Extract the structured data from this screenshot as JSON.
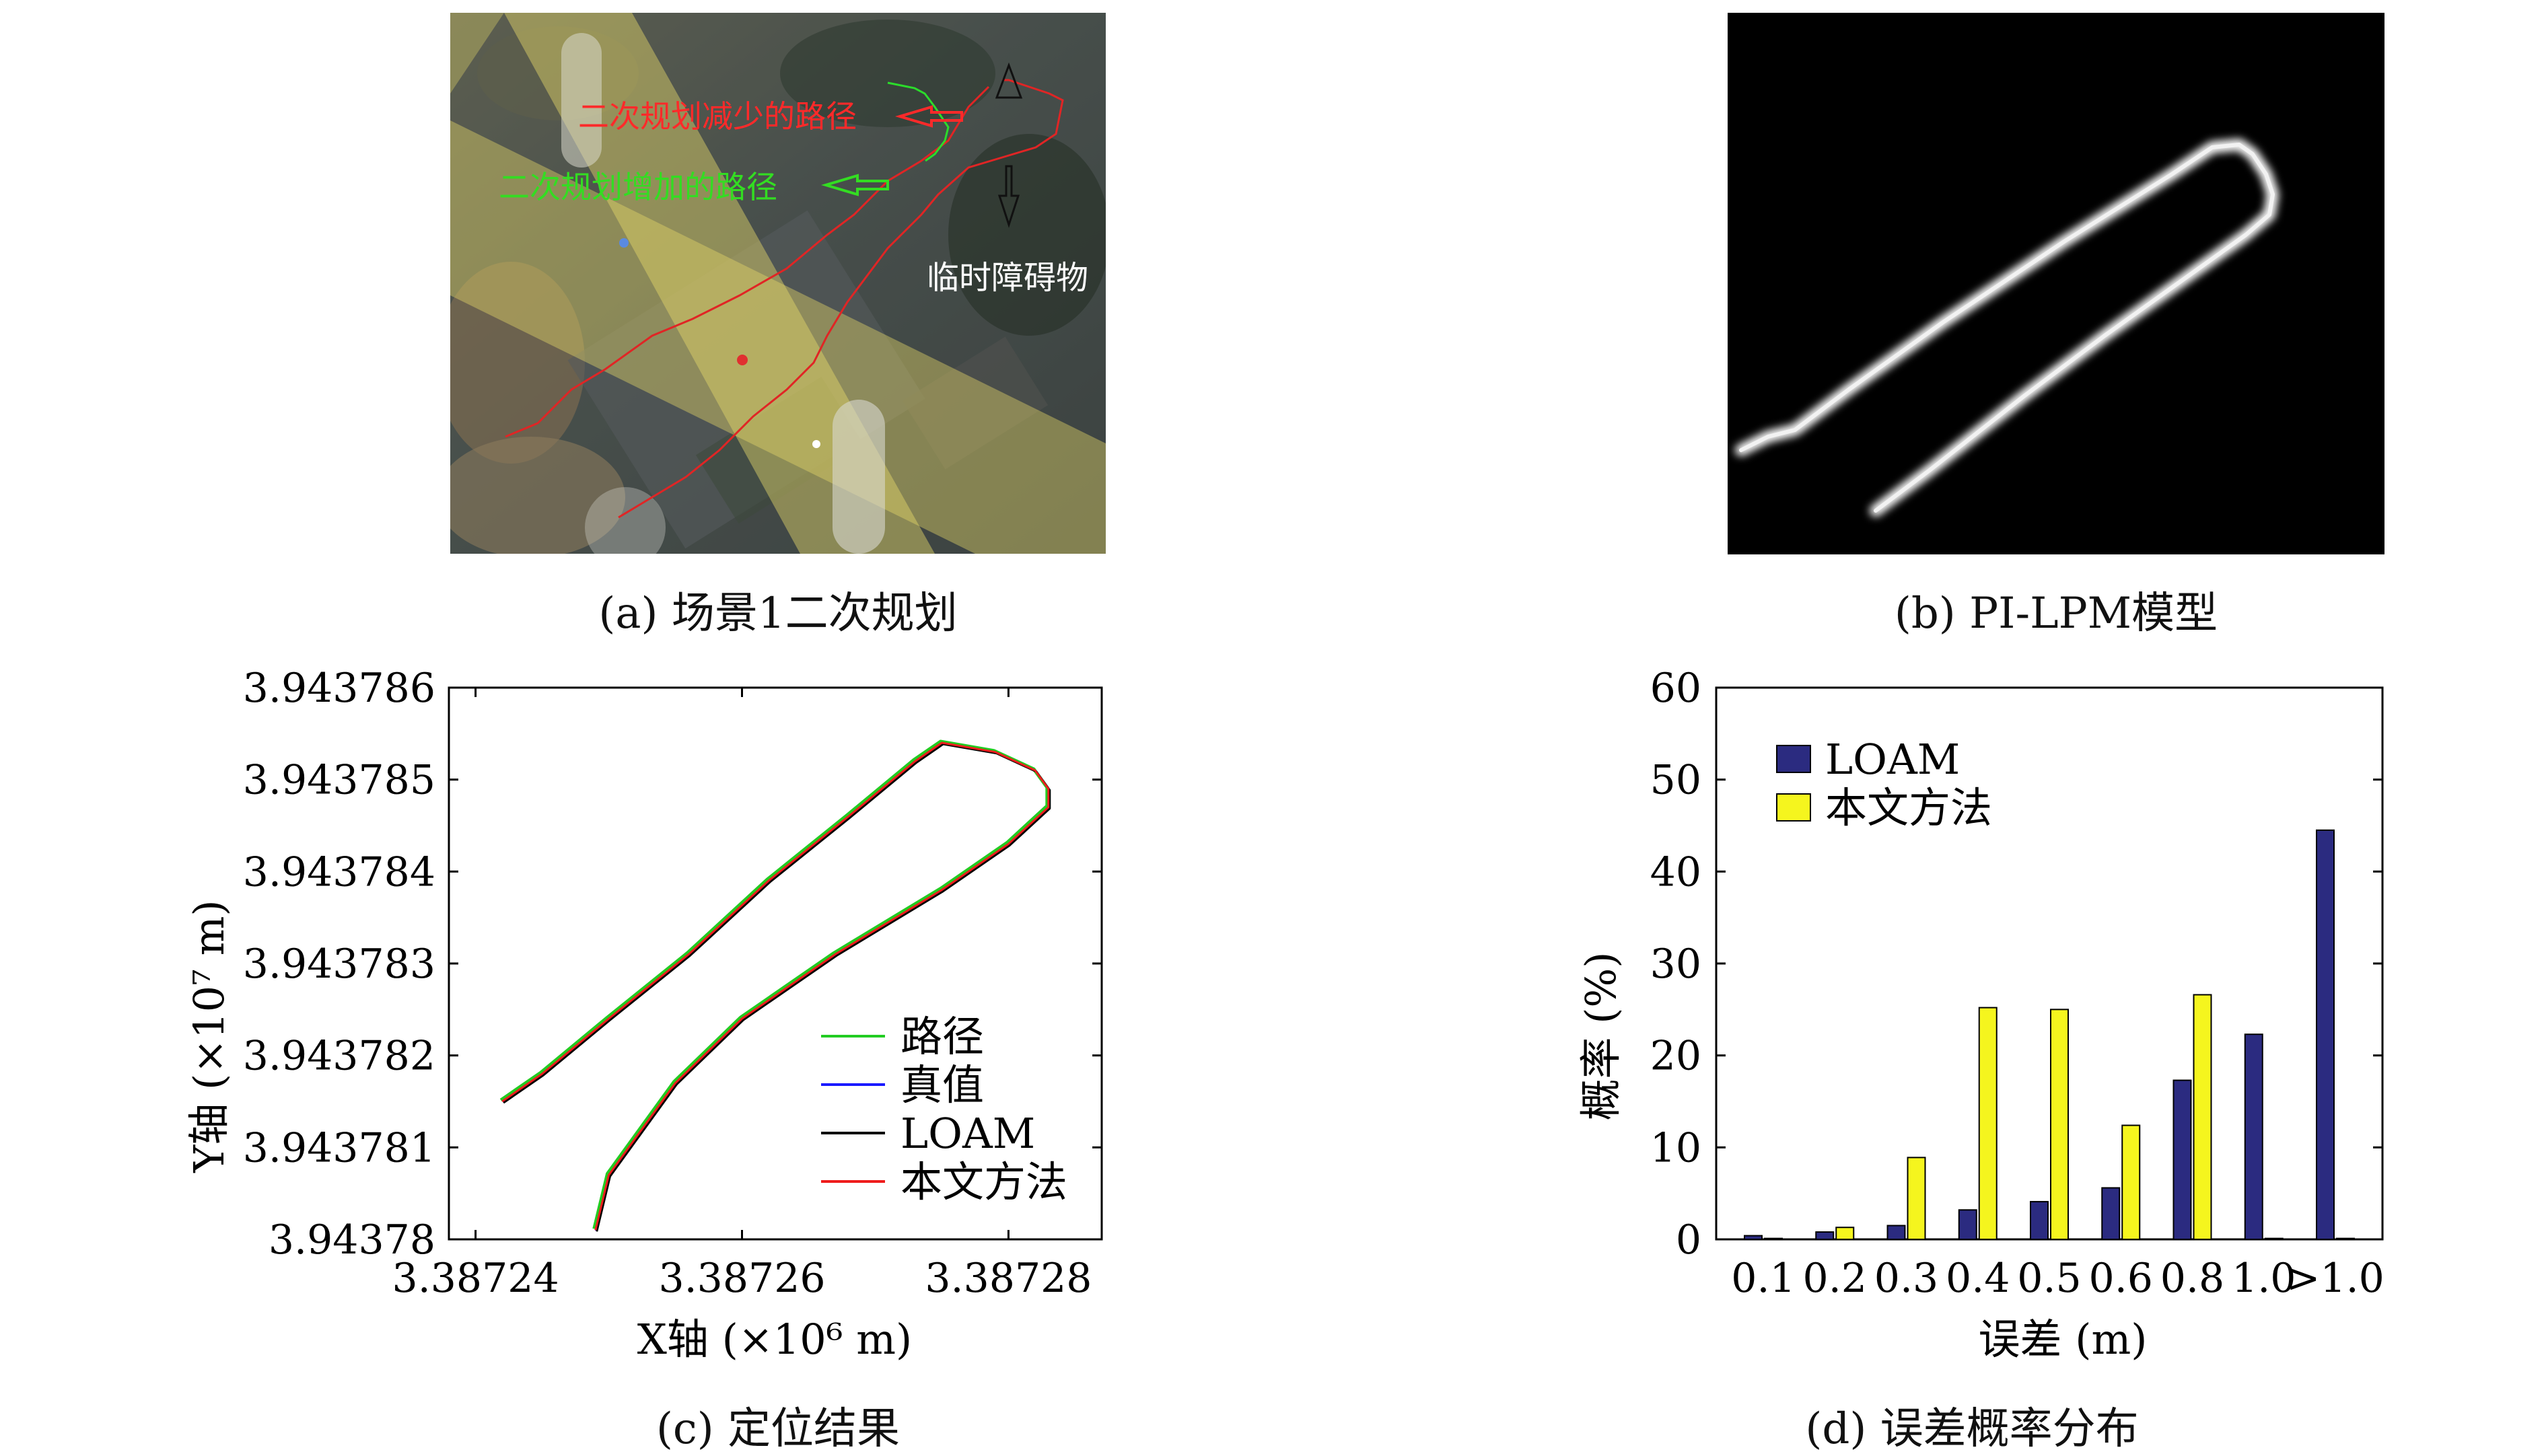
{
  "panels": {
    "a": {
      "caption": "(a) 场景1二次规划",
      "annotations": {
        "reduced_path": "二次规划减少的路径",
        "added_path": "二次规划增加的路径",
        "obstacle": "临时障碍物"
      },
      "colors": {
        "reduced": "#ff2a2a",
        "added": "#33dd22",
        "obstacle": "#ffffff"
      }
    },
    "b": {
      "caption": "(b) PI-LPM模型"
    },
    "c": {
      "caption": "(c) 定位结果"
    },
    "d": {
      "caption": "(d) 误差概率分布"
    }
  },
  "chart_data": [
    {
      "type": "line",
      "xlabel": "X轴 (×10⁶ m)",
      "ylabel": "Y轴 (×10⁷ m)",
      "xlim": [
        3.387238,
        3.387287
      ],
      "ylim": [
        3.94378,
        3.943786
      ],
      "xticks": [
        "3.38724",
        "3.38726",
        "3.38728"
      ],
      "yticks": [
        "3.94378",
        "3.943781",
        "3.943782",
        "3.943783",
        "3.943784",
        "3.943785",
        "3.943786"
      ],
      "legend_position": "bottom-right",
      "grid": false,
      "series": [
        {
          "name": "路径",
          "color": "#22cc22"
        },
        {
          "name": "真值",
          "color": "#1a1aff"
        },
        {
          "name": "LOAM",
          "color": "#000000"
        },
        {
          "name": "本文方法",
          "color": "#ee1c1c"
        }
      ],
      "trajectory": {
        "x": [
          3.387242,
          3.387245,
          3.38725,
          3.387256,
          3.387262,
          3.387268,
          3.387273,
          3.387275,
          3.387279,
          3.387282,
          3.387283,
          3.387283,
          3.38728,
          3.387275,
          3.387267,
          3.38726,
          3.387255,
          3.387252,
          3.38725,
          3.387249
        ],
        "y": [
          3.9437815,
          3.9437818,
          3.9437824,
          3.9437831,
          3.9437839,
          3.9437846,
          3.9437852,
          3.9437854,
          3.9437853,
          3.9437851,
          3.9437849,
          3.9437847,
          3.9437843,
          3.9437838,
          3.9437831,
          3.9437824,
          3.9437817,
          3.9437811,
          3.9437807,
          3.9437801
        ]
      }
    },
    {
      "type": "bar",
      "xlabel": "误差 (m)",
      "ylabel": "概率 (%)",
      "ylim": [
        0,
        60
      ],
      "yticks": [
        "0",
        "10",
        "20",
        "30",
        "40",
        "50",
        "60"
      ],
      "categories": [
        "0.1",
        "0.2",
        "0.3",
        "0.4",
        "0.5",
        "0.6",
        "0.8",
        "1.0",
        ">1.0"
      ],
      "legend_position": "top-left",
      "series": [
        {
          "name": "LOAM",
          "color": "#2b2b80",
          "values": [
            0.4,
            0.8,
            1.5,
            3.2,
            4.1,
            5.6,
            17.3,
            22.3,
            44.5
          ]
        },
        {
          "name": "本文方法",
          "color": "#f5f51e",
          "values": [
            0.1,
            1.3,
            8.9,
            25.2,
            25.0,
            12.4,
            26.6,
            0.1,
            0.1
          ]
        }
      ]
    }
  ]
}
